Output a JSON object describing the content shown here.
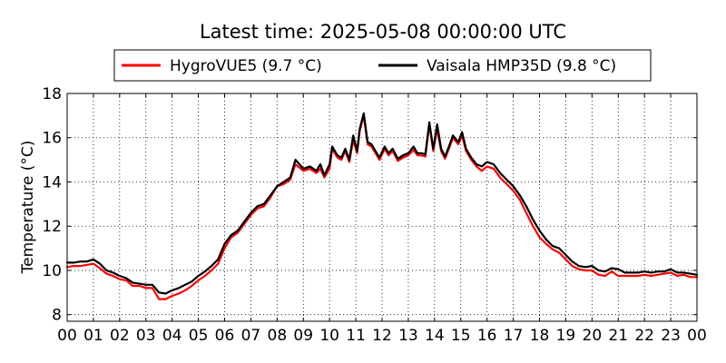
{
  "chart_data": {
    "type": "line",
    "title": "Latest time: 2025-05-08 00:00:00 UTC",
    "xlabel": "",
    "ylabel": "Temperature (°C)",
    "xlim": [
      0,
      24
    ],
    "ylim": [
      7.7,
      18
    ],
    "grid": true,
    "legend_position": "top-center",
    "x_tick_labels": [
      "00",
      "01",
      "02",
      "03",
      "04",
      "05",
      "06",
      "07",
      "08",
      "09",
      "10",
      "11",
      "12",
      "13",
      "14",
      "15",
      "16",
      "17",
      "18",
      "19",
      "20",
      "21",
      "22",
      "23",
      "00"
    ],
    "y_ticks": [
      8,
      10,
      12,
      14,
      16,
      18
    ],
    "series": [
      {
        "name": "HygroVUE5 (9.7 °C)",
        "color": "#ff0000",
        "points": [
          [
            0.0,
            10.15
          ],
          [
            0.25,
            10.2
          ],
          [
            0.5,
            10.2
          ],
          [
            0.75,
            10.25
          ],
          [
            1.0,
            10.3
          ],
          [
            1.25,
            10.1
          ],
          [
            1.5,
            9.85
          ],
          [
            1.75,
            9.75
          ],
          [
            2.0,
            9.6
          ],
          [
            2.25,
            9.55
          ],
          [
            2.5,
            9.3
          ],
          [
            2.75,
            9.3
          ],
          [
            3.0,
            9.2
          ],
          [
            3.25,
            9.2
          ],
          [
            3.5,
            8.7
          ],
          [
            3.75,
            8.7
          ],
          [
            4.0,
            8.85
          ],
          [
            4.25,
            8.95
          ],
          [
            4.5,
            9.1
          ],
          [
            4.75,
            9.3
          ],
          [
            5.0,
            9.55
          ],
          [
            5.25,
            9.75
          ],
          [
            5.5,
            10.0
          ],
          [
            5.75,
            10.3
          ],
          [
            6.0,
            11.0
          ],
          [
            6.25,
            11.5
          ],
          [
            6.5,
            11.7
          ],
          [
            6.75,
            12.1
          ],
          [
            7.0,
            12.5
          ],
          [
            7.25,
            12.8
          ],
          [
            7.5,
            12.9
          ],
          [
            7.75,
            13.3
          ],
          [
            8.0,
            13.8
          ],
          [
            8.25,
            13.9
          ],
          [
            8.5,
            14.1
          ],
          [
            8.7,
            14.8
          ],
          [
            9.0,
            14.5
          ],
          [
            9.25,
            14.6
          ],
          [
            9.5,
            14.4
          ],
          [
            9.65,
            14.6
          ],
          [
            9.8,
            14.2
          ],
          [
            10.0,
            14.6
          ],
          [
            10.1,
            15.5
          ],
          [
            10.3,
            15.1
          ],
          [
            10.45,
            15.0
          ],
          [
            10.6,
            15.4
          ],
          [
            10.75,
            14.9
          ],
          [
            10.9,
            15.9
          ],
          [
            11.05,
            15.3
          ],
          [
            11.15,
            16.3
          ],
          [
            11.3,
            17.0
          ],
          [
            11.45,
            15.7
          ],
          [
            11.6,
            15.6
          ],
          [
            11.75,
            15.3
          ],
          [
            11.9,
            15.0
          ],
          [
            12.1,
            15.5
          ],
          [
            12.25,
            15.2
          ],
          [
            12.4,
            15.4
          ],
          [
            12.6,
            14.95
          ],
          [
            12.8,
            15.1
          ],
          [
            13.0,
            15.2
          ],
          [
            13.2,
            15.45
          ],
          [
            13.35,
            15.2
          ],
          [
            13.5,
            15.2
          ],
          [
            13.65,
            15.15
          ],
          [
            13.8,
            16.6
          ],
          [
            13.95,
            15.4
          ],
          [
            14.1,
            16.4
          ],
          [
            14.25,
            15.4
          ],
          [
            14.4,
            15.05
          ],
          [
            14.55,
            15.5
          ],
          [
            14.7,
            16.0
          ],
          [
            14.9,
            15.7
          ],
          [
            15.05,
            16.1
          ],
          [
            15.2,
            15.4
          ],
          [
            15.4,
            15.0
          ],
          [
            15.6,
            14.7
          ],
          [
            15.8,
            14.5
          ],
          [
            16.0,
            14.7
          ],
          [
            16.25,
            14.6
          ],
          [
            16.5,
            14.2
          ],
          [
            16.75,
            13.9
          ],
          [
            17.0,
            13.6
          ],
          [
            17.25,
            13.2
          ],
          [
            17.5,
            12.6
          ],
          [
            17.75,
            12.0
          ],
          [
            18.0,
            11.5
          ],
          [
            18.25,
            11.2
          ],
          [
            18.5,
            10.95
          ],
          [
            18.75,
            10.8
          ],
          [
            19.0,
            10.5
          ],
          [
            19.25,
            10.2
          ],
          [
            19.5,
            10.05
          ],
          [
            19.75,
            10.0
          ],
          [
            20.0,
            10.0
          ],
          [
            20.25,
            9.8
          ],
          [
            20.5,
            9.75
          ],
          [
            20.75,
            9.95
          ],
          [
            21.0,
            9.75
          ],
          [
            21.25,
            9.75
          ],
          [
            21.5,
            9.75
          ],
          [
            21.75,
            9.75
          ],
          [
            22.0,
            9.8
          ],
          [
            22.25,
            9.75
          ],
          [
            22.5,
            9.8
          ],
          [
            22.75,
            9.85
          ],
          [
            23.0,
            9.9
          ],
          [
            23.25,
            9.75
          ],
          [
            23.5,
            9.8
          ],
          [
            23.75,
            9.7
          ],
          [
            24.0,
            9.7
          ]
        ]
      },
      {
        "name": "Vaisala HMP35D (9.8 °C)",
        "color": "#000000",
        "points": [
          [
            0.0,
            10.35
          ],
          [
            0.25,
            10.35
          ],
          [
            0.5,
            10.4
          ],
          [
            0.75,
            10.4
          ],
          [
            1.0,
            10.5
          ],
          [
            1.25,
            10.3
          ],
          [
            1.5,
            10.0
          ],
          [
            1.75,
            9.9
          ],
          [
            2.0,
            9.75
          ],
          [
            2.25,
            9.65
          ],
          [
            2.5,
            9.45
          ],
          [
            2.75,
            9.4
          ],
          [
            3.0,
            9.35
          ],
          [
            3.25,
            9.35
          ],
          [
            3.5,
            9.0
          ],
          [
            3.75,
            8.95
          ],
          [
            4.0,
            9.1
          ],
          [
            4.25,
            9.2
          ],
          [
            4.5,
            9.35
          ],
          [
            4.75,
            9.5
          ],
          [
            5.0,
            9.75
          ],
          [
            5.25,
            9.95
          ],
          [
            5.5,
            10.2
          ],
          [
            5.75,
            10.5
          ],
          [
            6.0,
            11.2
          ],
          [
            6.25,
            11.6
          ],
          [
            6.5,
            11.8
          ],
          [
            6.75,
            12.2
          ],
          [
            7.0,
            12.6
          ],
          [
            7.25,
            12.9
          ],
          [
            7.5,
            13.0
          ],
          [
            7.75,
            13.4
          ],
          [
            8.0,
            13.8
          ],
          [
            8.25,
            14.0
          ],
          [
            8.5,
            14.2
          ],
          [
            8.7,
            15.0
          ],
          [
            9.0,
            14.6
          ],
          [
            9.25,
            14.7
          ],
          [
            9.5,
            14.5
          ],
          [
            9.65,
            14.8
          ],
          [
            9.8,
            14.3
          ],
          [
            10.0,
            14.8
          ],
          [
            10.1,
            15.6
          ],
          [
            10.3,
            15.2
          ],
          [
            10.45,
            15.1
          ],
          [
            10.6,
            15.5
          ],
          [
            10.75,
            15.0
          ],
          [
            10.9,
            16.1
          ],
          [
            11.05,
            15.4
          ],
          [
            11.15,
            16.4
          ],
          [
            11.3,
            17.1
          ],
          [
            11.45,
            15.8
          ],
          [
            11.6,
            15.7
          ],
          [
            11.75,
            15.4
          ],
          [
            11.9,
            15.1
          ],
          [
            12.1,
            15.6
          ],
          [
            12.25,
            15.3
          ],
          [
            12.4,
            15.5
          ],
          [
            12.6,
            15.05
          ],
          [
            12.8,
            15.2
          ],
          [
            13.0,
            15.3
          ],
          [
            13.2,
            15.6
          ],
          [
            13.35,
            15.3
          ],
          [
            13.5,
            15.3
          ],
          [
            13.65,
            15.25
          ],
          [
            13.8,
            16.7
          ],
          [
            13.95,
            15.5
          ],
          [
            14.1,
            16.6
          ],
          [
            14.25,
            15.5
          ],
          [
            14.4,
            15.15
          ],
          [
            14.55,
            15.6
          ],
          [
            14.7,
            16.1
          ],
          [
            14.9,
            15.8
          ],
          [
            15.05,
            16.25
          ],
          [
            15.2,
            15.5
          ],
          [
            15.4,
            15.1
          ],
          [
            15.6,
            14.8
          ],
          [
            15.8,
            14.7
          ],
          [
            16.0,
            14.9
          ],
          [
            16.25,
            14.8
          ],
          [
            16.5,
            14.4
          ],
          [
            16.75,
            14.1
          ],
          [
            17.0,
            13.8
          ],
          [
            17.25,
            13.4
          ],
          [
            17.5,
            12.9
          ],
          [
            17.75,
            12.3
          ],
          [
            18.0,
            11.8
          ],
          [
            18.25,
            11.4
          ],
          [
            18.5,
            11.1
          ],
          [
            18.75,
            11.0
          ],
          [
            19.0,
            10.7
          ],
          [
            19.25,
            10.4
          ],
          [
            19.5,
            10.2
          ],
          [
            19.75,
            10.15
          ],
          [
            20.0,
            10.2
          ],
          [
            20.25,
            10.0
          ],
          [
            20.5,
            9.95
          ],
          [
            20.75,
            10.1
          ],
          [
            21.0,
            10.05
          ],
          [
            21.25,
            9.9
          ],
          [
            21.5,
            9.9
          ],
          [
            21.75,
            9.9
          ],
          [
            22.0,
            9.95
          ],
          [
            22.25,
            9.9
          ],
          [
            22.5,
            9.95
          ],
          [
            22.75,
            9.95
          ],
          [
            23.0,
            10.05
          ],
          [
            23.25,
            9.9
          ],
          [
            23.5,
            9.9
          ],
          [
            23.75,
            9.85
          ],
          [
            24.0,
            9.8
          ]
        ]
      }
    ]
  }
}
